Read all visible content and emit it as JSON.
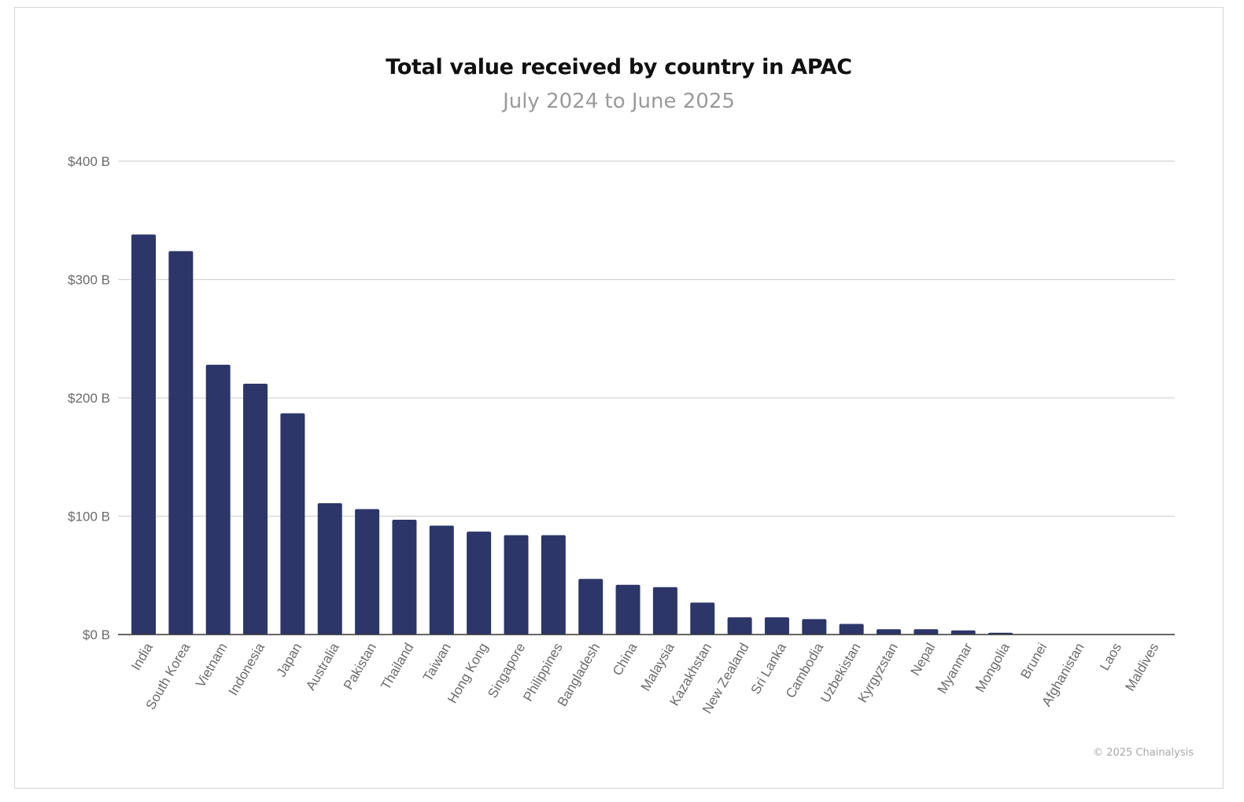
{
  "chart_data": {
    "type": "bar",
    "title": "Total value received by country in APAC",
    "subtitle": "July 2024 to June 2025",
    "xlabel": "",
    "ylabel": "",
    "ylim": [
      0,
      400
    ],
    "y_ticks": [
      0,
      100,
      200,
      300,
      400
    ],
    "y_tick_labels": [
      "$0 B",
      "$100 B",
      "$200 B",
      "$300 B",
      "$400 B"
    ],
    "grid": true,
    "legend": "none",
    "bar_color": "#2d3669",
    "categories": [
      "India",
      "South Korea",
      "Vietnam",
      "Indonesia",
      "Japan",
      "Australia",
      "Pakistan",
      "Thailand",
      "Taiwan",
      "Hong Kong",
      "Singapore",
      "Philippines",
      "Bangladesh",
      "China",
      "Malaysia",
      "Kazakhstan",
      "New Zealand",
      "Sri Lanka",
      "Cambodia",
      "Uzbekistan",
      "Kyrgyzstan",
      "Nepal",
      "Myanmar",
      "Mongolia",
      "Brunei",
      "Afghanistan",
      "Laos",
      "Maldives"
    ],
    "values": [
      338,
      324,
      228,
      212,
      187,
      111,
      106,
      97,
      92,
      87,
      84,
      84,
      47,
      42,
      40,
      27,
      14.5,
      14.5,
      13,
      9,
      4.5,
      4.5,
      3.5,
      1.5,
      0.3,
      0.2,
      0.1,
      0.1
    ]
  },
  "credit": "© 2025 Chainalysis"
}
